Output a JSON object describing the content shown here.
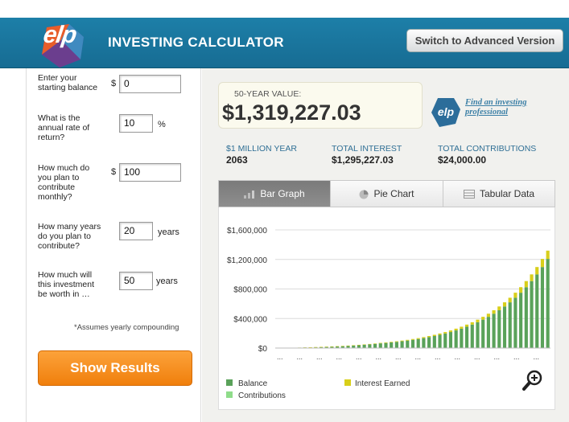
{
  "header": {
    "logo_text": "elp",
    "title": "INVESTING CALCULATOR",
    "advanced_button": "Switch to Advanced Version"
  },
  "form": {
    "starting_balance": {
      "label_lines": [
        "Enter your",
        "starting balance"
      ],
      "currency": "$",
      "value": "0"
    },
    "rate": {
      "label_lines": [
        "What is the",
        "annual rate of",
        "return?"
      ],
      "value": "10",
      "unit": "%"
    },
    "monthly": {
      "label_lines": [
        "How much do",
        "you plan to",
        "contribute",
        "monthly?"
      ],
      "currency": "$",
      "value": "100"
    },
    "years": {
      "label_lines": [
        "How many years",
        "do you plan to",
        "contribute?"
      ],
      "value": "20",
      "unit": "years"
    },
    "worth_in": {
      "label_lines": [
        "How much will",
        "this investment",
        "be worth in …"
      ],
      "value": "50",
      "unit": "years"
    },
    "note": "*Assumes yearly compounding",
    "show_button": "Show Results"
  },
  "results": {
    "value_label": "50-YEAR VALUE:",
    "value_amount": "$1,319,227.03",
    "find_link_lines": [
      "Find an investing",
      "professional"
    ],
    "stats": [
      {
        "label": "$1 MILLION YEAR",
        "value": "2063"
      },
      {
        "label": "TOTAL INTEREST",
        "value": "$1,295,227.03"
      },
      {
        "label": "TOTAL CONTRIBUTIONS",
        "value": "$24,000.00"
      }
    ]
  },
  "tabs": [
    {
      "label": "Bar Graph",
      "icon": "bar-graph-icon",
      "active": true
    },
    {
      "label": "Pie Chart",
      "icon": "pie-chart-icon",
      "active": false
    },
    {
      "label": "Tabular Data",
      "icon": "table-icon",
      "active": false
    }
  ],
  "legend": {
    "balance": "Balance",
    "interest": "Interest Earned",
    "contributions": "Contributions"
  },
  "colors": {
    "balance": "#5aa25a",
    "interest": "#d8cf1a",
    "contributions": "#8fdc8a",
    "accent": "#f08a16",
    "header": "#1d7fa8"
  },
  "chart_data": {
    "type": "bar",
    "stacked": true,
    "ylim": [
      0,
      1600000
    ],
    "y_ticks": [
      "$1,600,000",
      "$1,200,000",
      "$800,000",
      "$400,000",
      "$0"
    ],
    "y_tick_values": [
      1600000,
      1200000,
      800000,
      400000,
      0
    ],
    "x_tick_label": "...",
    "series": [
      {
        "name": "Balance",
        "values": [
          0,
          1300,
          2700,
          4200,
          5900,
          7700,
          9700,
          11900,
          14300,
          16900,
          19900,
          23100,
          26500,
          30500,
          34700,
          39500,
          44700,
          50500,
          56900,
          63900,
          69200,
          76100,
          83700,
          92100,
          101300,
          111400,
          122500,
          134800,
          148300,
          163100,
          179400,
          197300,
          217100,
          238800,
          262700,
          288900,
          317800,
          349600,
          384600,
          423000,
          465300,
          511800,
          563000,
          619300,
          681300,
          749400,
          824300,
          906800,
          997400,
          1097200,
          1206900
        ]
      },
      {
        "name": "Interest Earned",
        "values": [
          0,
          130,
          270,
          420,
          590,
          770,
          970,
          1190,
          1430,
          1690,
          1990,
          2310,
          2650,
          3050,
          3470,
          3950,
          4470,
          5050,
          5690,
          6390,
          6900,
          7600,
          8400,
          9200,
          10100,
          11100,
          12200,
          13500,
          14800,
          16300,
          17900,
          19700,
          21700,
          23900,
          26300,
          28900,
          31800,
          35000,
          38500,
          42300,
          46500,
          51200,
          56300,
          61900,
          68100,
          74900,
          82400,
          90700,
          99700,
          109700,
          112300
        ]
      }
    ]
  }
}
